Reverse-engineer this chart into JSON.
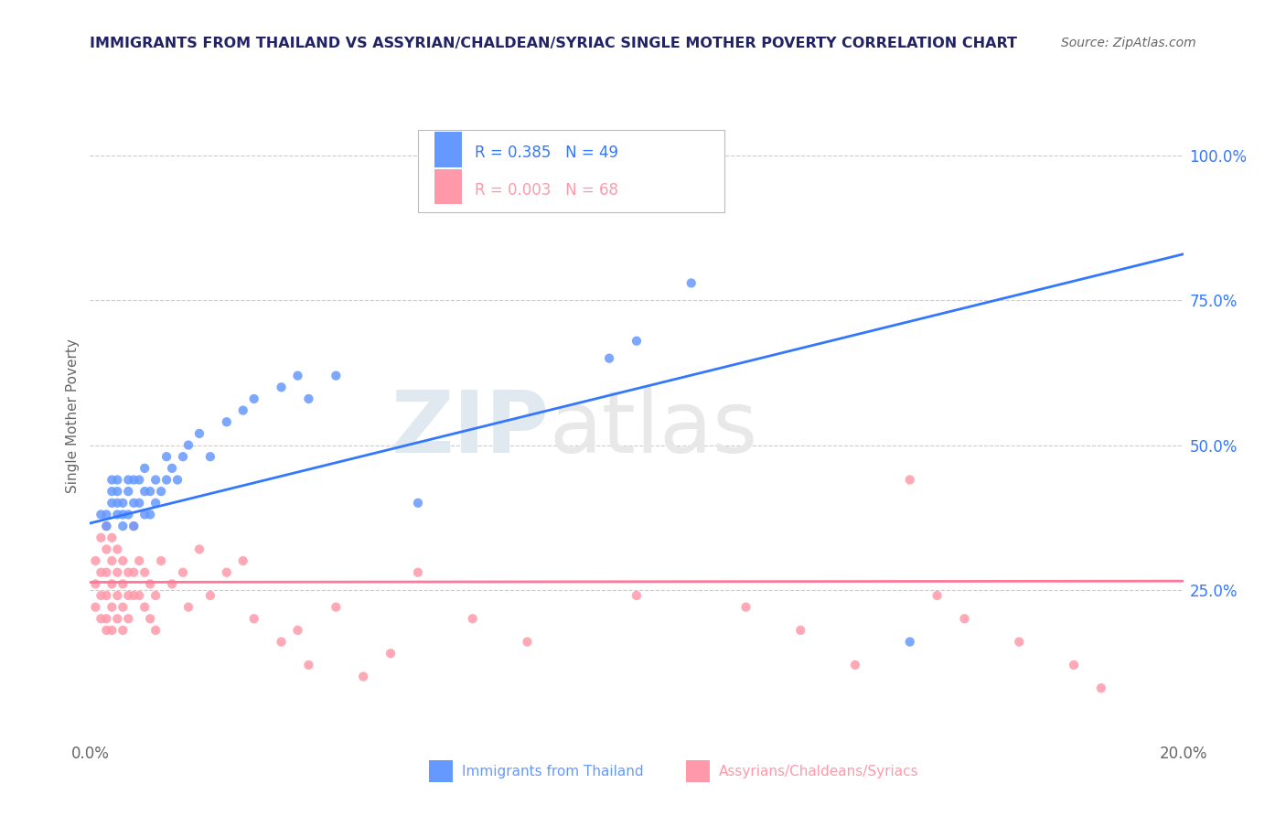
{
  "title": "IMMIGRANTS FROM THAILAND VS ASSYRIAN/CHALDEAN/SYRIAC SINGLE MOTHER POVERTY CORRELATION CHART",
  "source": "Source: ZipAtlas.com",
  "ylabel": "Single Mother Poverty",
  "right_yticks": [
    0.25,
    0.5,
    0.75,
    1.0
  ],
  "right_yticklabels": [
    "25.0%",
    "50.0%",
    "75.0%",
    "100.0%"
  ],
  "xlim": [
    0.0,
    0.2
  ],
  "ylim": [
    0.0,
    1.1
  ],
  "xtick_positions": [
    0.0,
    0.2
  ],
  "xtick_labels": [
    "0.0%",
    "20.0%"
  ],
  "legend_blue_r": "R = 0.385",
  "legend_blue_n": "N = 49",
  "legend_pink_r": "R = 0.003",
  "legend_pink_n": "N = 68",
  "blue_color": "#6699FF",
  "pink_color": "#FF99AA",
  "blue_line_color": "#3377FF",
  "pink_line_color": "#FF7799",
  "watermark": "ZIPatlas",
  "watermark_zip": "ZIP",
  "watermark_atlas": "atlas",
  "blue_scatter_x": [
    0.002,
    0.003,
    0.003,
    0.004,
    0.004,
    0.004,
    0.005,
    0.005,
    0.005,
    0.005,
    0.006,
    0.006,
    0.006,
    0.007,
    0.007,
    0.007,
    0.008,
    0.008,
    0.008,
    0.009,
    0.009,
    0.01,
    0.01,
    0.01,
    0.011,
    0.011,
    0.012,
    0.012,
    0.013,
    0.014,
    0.014,
    0.015,
    0.016,
    0.017,
    0.018,
    0.02,
    0.022,
    0.025,
    0.028,
    0.03,
    0.035,
    0.038,
    0.04,
    0.045,
    0.06,
    0.095,
    0.1,
    0.11,
    0.15
  ],
  "blue_scatter_y": [
    0.38,
    0.36,
    0.38,
    0.4,
    0.42,
    0.44,
    0.38,
    0.4,
    0.42,
    0.44,
    0.36,
    0.38,
    0.4,
    0.38,
    0.42,
    0.44,
    0.36,
    0.4,
    0.44,
    0.4,
    0.44,
    0.38,
    0.42,
    0.46,
    0.38,
    0.42,
    0.4,
    0.44,
    0.42,
    0.44,
    0.48,
    0.46,
    0.44,
    0.48,
    0.5,
    0.52,
    0.48,
    0.54,
    0.56,
    0.58,
    0.6,
    0.62,
    0.58,
    0.62,
    0.4,
    0.65,
    0.68,
    0.78,
    0.16
  ],
  "pink_scatter_x": [
    0.001,
    0.001,
    0.001,
    0.002,
    0.002,
    0.002,
    0.002,
    0.003,
    0.003,
    0.003,
    0.003,
    0.003,
    0.003,
    0.004,
    0.004,
    0.004,
    0.004,
    0.004,
    0.005,
    0.005,
    0.005,
    0.005,
    0.006,
    0.006,
    0.006,
    0.006,
    0.007,
    0.007,
    0.007,
    0.008,
    0.008,
    0.008,
    0.009,
    0.009,
    0.01,
    0.01,
    0.011,
    0.011,
    0.012,
    0.012,
    0.013,
    0.015,
    0.017,
    0.018,
    0.02,
    0.022,
    0.025,
    0.028,
    0.03,
    0.035,
    0.038,
    0.04,
    0.045,
    0.05,
    0.055,
    0.06,
    0.07,
    0.08,
    0.1,
    0.12,
    0.13,
    0.14,
    0.15,
    0.155,
    0.16,
    0.17,
    0.18,
    0.185
  ],
  "pink_scatter_y": [
    0.3,
    0.26,
    0.22,
    0.34,
    0.28,
    0.24,
    0.2,
    0.36,
    0.32,
    0.28,
    0.24,
    0.2,
    0.18,
    0.34,
    0.3,
    0.26,
    0.22,
    0.18,
    0.32,
    0.28,
    0.24,
    0.2,
    0.3,
    0.26,
    0.22,
    0.18,
    0.28,
    0.24,
    0.2,
    0.36,
    0.28,
    0.24,
    0.3,
    0.24,
    0.28,
    0.22,
    0.26,
    0.2,
    0.24,
    0.18,
    0.3,
    0.26,
    0.28,
    0.22,
    0.32,
    0.24,
    0.28,
    0.3,
    0.2,
    0.16,
    0.18,
    0.12,
    0.22,
    0.1,
    0.14,
    0.28,
    0.2,
    0.16,
    0.24,
    0.22,
    0.18,
    0.12,
    0.44,
    0.24,
    0.2,
    0.16,
    0.12,
    0.08
  ],
  "blue_trend_x": [
    0.0,
    0.2
  ],
  "blue_trend_y": [
    0.365,
    0.83
  ],
  "pink_trend_x": [
    0.0,
    0.2
  ],
  "pink_trend_y": [
    0.263,
    0.265
  ],
  "grid_color": "#cccccc",
  "title_color": "#222266",
  "source_color": "#666666",
  "axis_label_color": "#666666",
  "tick_color": "#666666"
}
